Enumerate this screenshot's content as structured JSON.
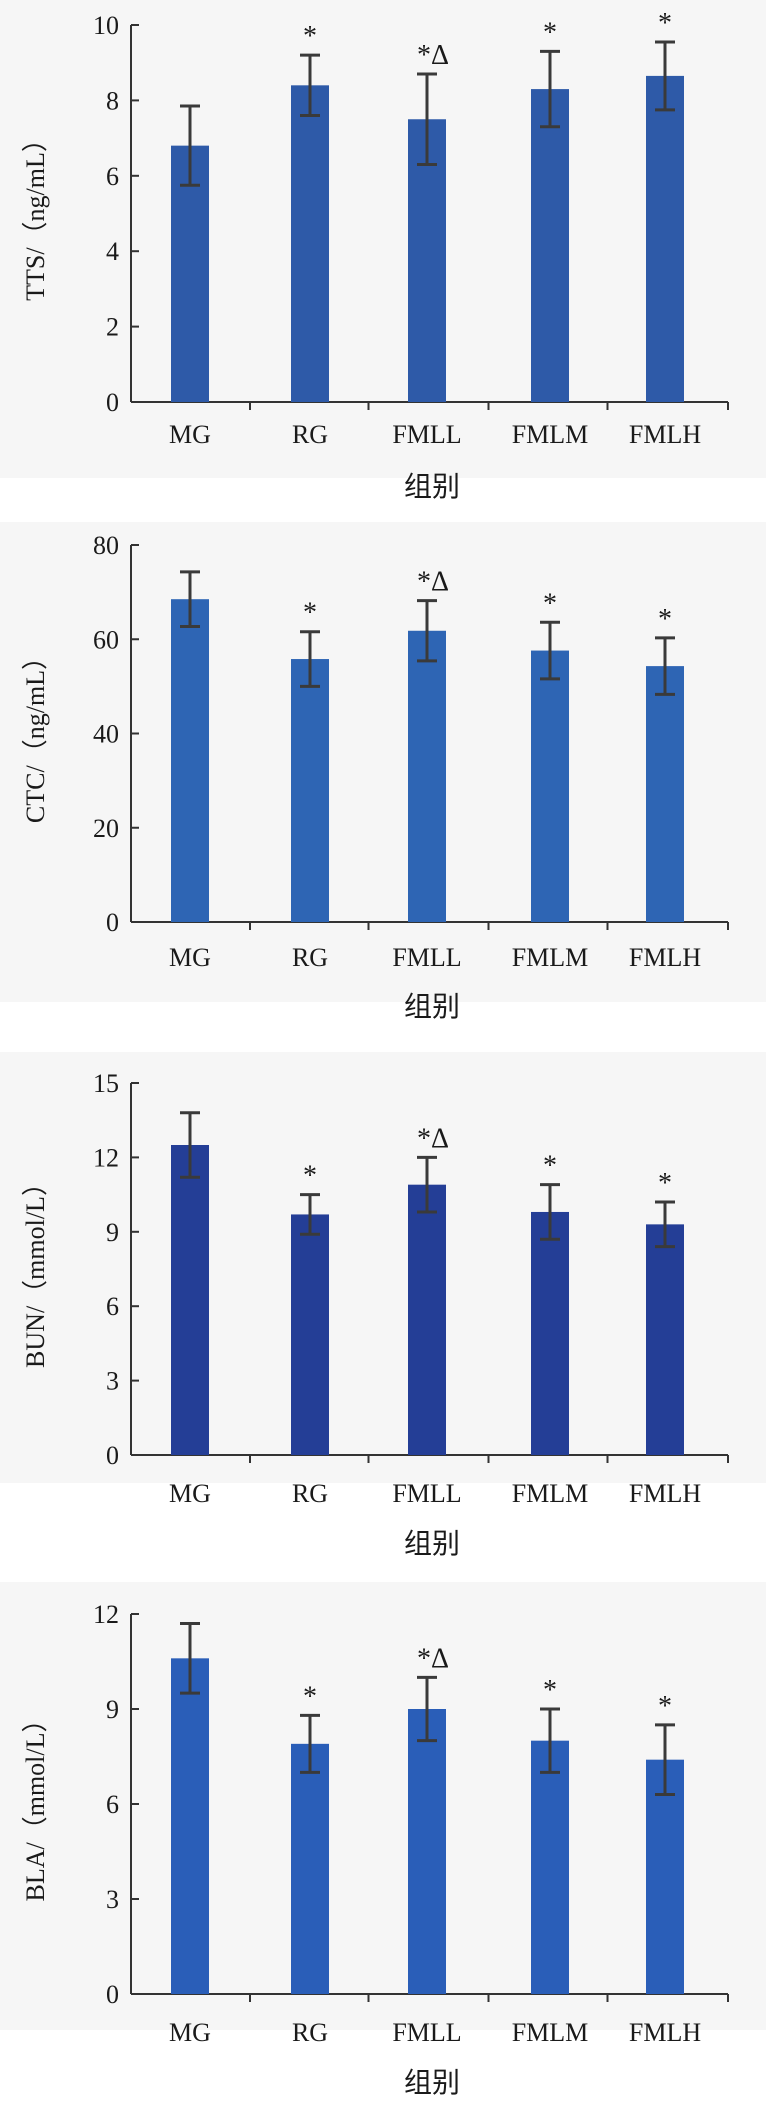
{
  "chart_data": [
    {
      "type": "bar",
      "categories": [
        "MG",
        "RG",
        "FMLL",
        "FMLM",
        "FMLH"
      ],
      "values": [
        6.8,
        8.4,
        7.5,
        8.3,
        8.65
      ],
      "error": [
        1.05,
        0.8,
        1.2,
        1.0,
        0.9
      ],
      "markers": [
        "",
        "*",
        "*Δ",
        "*",
        "*"
      ],
      "ylabel": "TTS/（ng/mL）",
      "xlabel": "组别",
      "ylim": [
        0,
        10
      ],
      "yticks": [
        0,
        2,
        4,
        6,
        8,
        10
      ],
      "color": "#2e5aa8"
    },
    {
      "type": "bar",
      "categories": [
        "MG",
        "RG",
        "FMLL",
        "FMLM",
        "FMLH"
      ],
      "values": [
        68.5,
        55.8,
        61.8,
        57.6,
        54.3
      ],
      "error": [
        5.8,
        5.8,
        6.4,
        6.0,
        6.0
      ],
      "markers": [
        "",
        "*",
        "*Δ",
        "*",
        "*"
      ],
      "ylabel": "CTC/（ng/mL）",
      "xlabel": "组别",
      "ylim": [
        0,
        80
      ],
      "yticks": [
        0,
        20,
        40,
        60,
        80
      ],
      "color": "#2e65b4"
    },
    {
      "type": "bar",
      "categories": [
        "MG",
        "RG",
        "FMLL",
        "FMLM",
        "FMLH"
      ],
      "values": [
        12.5,
        9.7,
        10.9,
        9.8,
        9.3
      ],
      "error": [
        1.3,
        0.8,
        1.1,
        1.1,
        0.9
      ],
      "markers": [
        "",
        "*",
        "*Δ",
        "*",
        "*"
      ],
      "ylabel": "BUN/（mmol/L）",
      "xlabel": "组别",
      "ylim": [
        0,
        15
      ],
      "yticks": [
        0,
        3,
        6,
        9,
        12,
        15
      ],
      "color": "#243e96"
    },
    {
      "type": "bar",
      "categories": [
        "MG",
        "RG",
        "FMLL",
        "FMLM",
        "FMLH"
      ],
      "values": [
        10.6,
        7.9,
        9.0,
        8.0,
        7.4
      ],
      "error": [
        1.1,
        0.9,
        1.0,
        1.0,
        1.1
      ],
      "markers": [
        "",
        "*",
        "*Δ",
        "*",
        "*"
      ],
      "ylabel": "BLA/（mmol/L）",
      "xlabel": "组别",
      "ylim": [
        0,
        12
      ],
      "yticks": [
        0,
        3,
        6,
        9,
        12
      ],
      "color": "#2a5eb8"
    }
  ]
}
